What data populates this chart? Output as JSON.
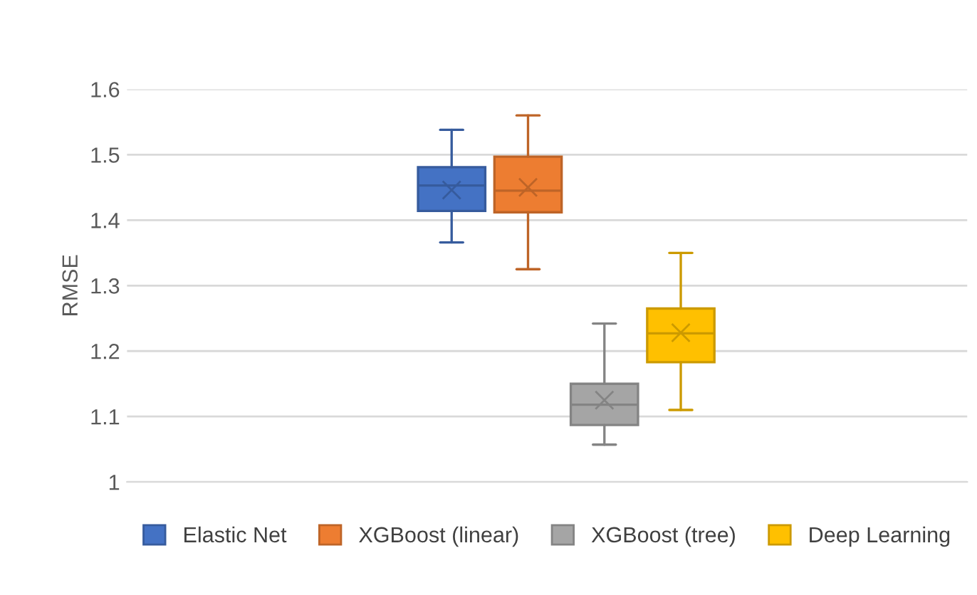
{
  "chart_data": {
    "type": "box",
    "ylabel": "RMSE",
    "categories": [
      null
    ],
    "series": [
      {
        "name": "Elastic Net",
        "color": "#4472c4",
        "boxes": [
          {
            "low": 1.366,
            "q1": 1.414,
            "median": 1.453,
            "q3": 1.481,
            "high": 1.538,
            "mean": 1.446
          }
        ]
      },
      {
        "name": "XGBoost (linear)",
        "color": "#ed7d31",
        "boxes": [
          {
            "low": 1.325,
            "q1": 1.412,
            "median": 1.445,
            "q3": 1.497,
            "high": 1.56,
            "mean": 1.45
          }
        ]
      },
      {
        "name": "XGBoost (tree)",
        "color": "#a5a5a5",
        "boxes": [
          {
            "low": 1.057,
            "q1": 1.087,
            "median": 1.118,
            "q3": 1.15,
            "high": 1.242,
            "mean": 1.125
          }
        ]
      },
      {
        "name": "Deep Learning",
        "color": "#ffc000",
        "boxes": [
          {
            "low": 1.11,
            "q1": 1.183,
            "median": 1.227,
            "q3": 1.265,
            "high": 1.35,
            "mean": 1.228
          }
        ]
      }
    ],
    "ylim": [
      1,
      1.6
    ],
    "yticks": [
      1,
      1.1,
      1.2,
      1.3,
      1.4,
      1.5,
      1.6
    ],
    "grid": "y",
    "legend": "bottom",
    "marker": "cross"
  }
}
